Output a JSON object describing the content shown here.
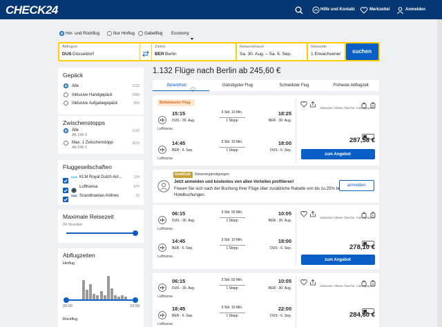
{
  "header": {
    "logo": "CHECK24",
    "links": [
      "Hilfe und Kontakt",
      "Merkzettel",
      "Anmelden"
    ]
  },
  "search": {
    "trip_types": [
      "Hin- und Rückflug",
      "Nur Hinflug",
      "Gabelflug"
    ],
    "cabin": "Economy",
    "fields": [
      {
        "label": "Abflugort",
        "code": "DUS",
        "value": "Düsseldorf"
      },
      {
        "label": "Zielort",
        "code": "BER",
        "value": "Berlin"
      },
      {
        "label": "Reisezeitraum",
        "value": "Sa. 30. Aug. – Sa. 6. Sep."
      },
      {
        "label": "Reisende",
        "value": "1 Erwachsener"
      }
    ],
    "button": "suchen"
  },
  "filters": {
    "baggage": {
      "title": "Gepäck",
      "options": [
        {
          "label": "Alle",
          "count": 1132
        },
        {
          "label": "Inklusive Handgepäck",
          "count": 1089
        },
        {
          "label": "Inklusive Aufgabegepäck",
          "count": 569
        }
      ]
    },
    "stops": {
      "title": "Zwischenstopps",
      "options": [
        {
          "label": "Alle",
          "sub": "Ab 246 €",
          "count": 1132
        },
        {
          "label": "Max. 1 Zwischenstopp",
          "sub": "Ab 246 €",
          "count": 1019
        }
      ]
    },
    "airlines": {
      "title": "Fluggesellschaften",
      "options": [
        {
          "logo": "KLM",
          "label": "KLM Royal Dutch Airl...",
          "count": 134
        },
        {
          "label": "Lufthansa",
          "count": 975
        },
        {
          "logo": "SAS",
          "label": "Scandinavian Airlines",
          "count": 23
        }
      ]
    },
    "travel_time": {
      "title": "Maximale Reisezeit",
      "value": "24 Stunden"
    },
    "departure_times": {
      "title": "Abflugzeiten",
      "outbound": "Hinflug",
      "histogram": [
        28,
        14,
        22,
        8,
        6,
        12,
        6,
        34,
        16,
        6,
        4,
        6,
        4
      ],
      "range": [
        "00:00",
        "23:59"
      ],
      "return": "Rückflug"
    }
  },
  "results": {
    "title": "1.132 Flüge nach Berlin ab 245,60 €",
    "tabs": [
      "Beliebtheit",
      "Günstigster Flug",
      "Schnellster Flug",
      "Früheste Abflugzeit"
    ],
    "cards": [
      {
        "badge": "Beliebtester Flug",
        "legs": [
          {
            "dep": "15:15",
            "duration": "3 Std. 10 Min.",
            "arr": "18:25",
            "from": "DUS - 30. Aug.",
            "stops": "1 Stopp",
            "to": "BER - 30. Aug.",
            "airline": "Lufthansa"
          },
          {
            "dep": "14:45",
            "duration": "3 Std. 15 Min.",
            "arr": "18:00",
            "from": "BER - 6. Sep.",
            "stops": "1 Stopp",
            "to": "DUS - 6. Sep.",
            "airline": "Lufthansa"
          }
        ],
        "included": "inklusive: kleine Tasche, Handgepäck",
        "price": "287,58 €",
        "button": "zum Angebot"
      },
      {
        "legs": [
          {
            "dep": "06:15",
            "duration": "3 Std. 50 Min.",
            "arr": "10:05",
            "from": "DUS - 30. Aug.",
            "stops": "1 Stopp",
            "to": "BER - 30. Aug.",
            "airline": "Lufthansa"
          },
          {
            "dep": "14:45",
            "duration": "3 Std. 15 Min.",
            "arr": "18:00",
            "from": "BER - 6. Sep.",
            "stops": "1 Stopp",
            "to": "DUS - 6. Sep.",
            "airline": "Lufthansa"
          }
        ],
        "included": "inklusive: kleine Tasche, Handgepäck",
        "price": "278,10 €",
        "button": "zum Angebot"
      },
      {
        "legs": [
          {
            "dep": "06:15",
            "duration": "3 Std. 50 Min.",
            "arr": "10:05",
            "from": "DUS - 30. Aug.",
            "stops": "1 Stopp",
            "to": "BER - 30. Aug.",
            "airline": "Lufthansa"
          },
          {
            "dep": "18:45",
            "duration": "3 Std. 15 Min.",
            "arr": "22:00",
            "from": "BER - 6. Sep.",
            "stops": "1 Stopp",
            "to": "DUS - 6. Sep.",
            "airline": "Lufthansa"
          }
        ],
        "included": "inklusive: kleine Tasche, Handgepäck",
        "price": "284,60 €"
      }
    ],
    "promo": {
      "badge": "GoldClub",
      "badge_text": "Reisevergünstigungen",
      "heading": "Jetzt anmelden und kostenlos von allen Vorteilen profitieren!",
      "body": "Freuen Sie sich nach der Buchung Ihrer Flüge über zusätzliche Rabatte von bis zu 25% bei Hotelbuchungen.",
      "button": "anmelden"
    }
  }
}
